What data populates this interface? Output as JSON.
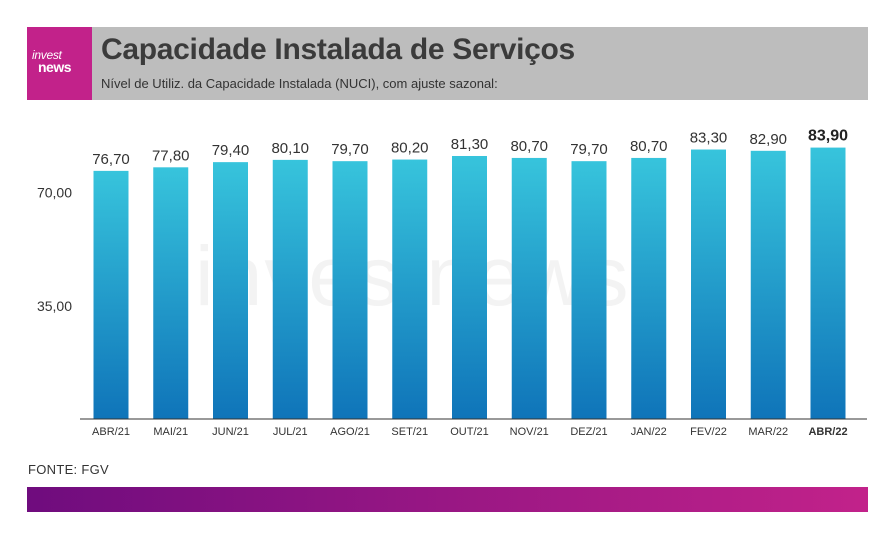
{
  "logo": {
    "line1": "invest",
    "line2": "news"
  },
  "header": {
    "title": "Capacidade Instalada de Serviços",
    "subtitle": "Nível de Utiliz. da Capacidade Instalada (NUCI), com ajuste sazonal:"
  },
  "watermark": "investnews",
  "source": "FONTE: FGV",
  "colors": {
    "accent": "#c2228a",
    "header_bg": "#bdbdbd",
    "bar_top": "#37c4dc",
    "bar_bottom": "#0f74b9",
    "footer_start": "#6f0c7e",
    "footer_end": "#c2228a"
  },
  "chart_data": {
    "type": "bar",
    "categories": [
      "ABR/21",
      "MAI/21",
      "JUN/21",
      "JUL/21",
      "AGO/21",
      "SET/21",
      "OUT/21",
      "NOV/21",
      "DEZ/21",
      "JAN/22",
      "FEV/22",
      "MAR/22",
      "ABR/22"
    ],
    "values": [
      76.7,
      77.8,
      79.4,
      80.1,
      79.7,
      80.2,
      81.3,
      80.7,
      79.7,
      80.7,
      83.3,
      82.9,
      83.9
    ],
    "value_labels": [
      "76,70",
      "77,80",
      "79,40",
      "80,10",
      "79,70",
      "80,20",
      "81,30",
      "80,70",
      "79,70",
      "80,70",
      "83,30",
      "82,90",
      "83,90"
    ],
    "ylim": [
      0,
      100
    ],
    "yticks": [
      35,
      70
    ],
    "ytick_labels": [
      "35,00",
      "70,00"
    ],
    "highlight_index": 12,
    "title": "Capacidade Instalada de Serviços",
    "xlabel": "",
    "ylabel": "",
    "grid": false
  }
}
